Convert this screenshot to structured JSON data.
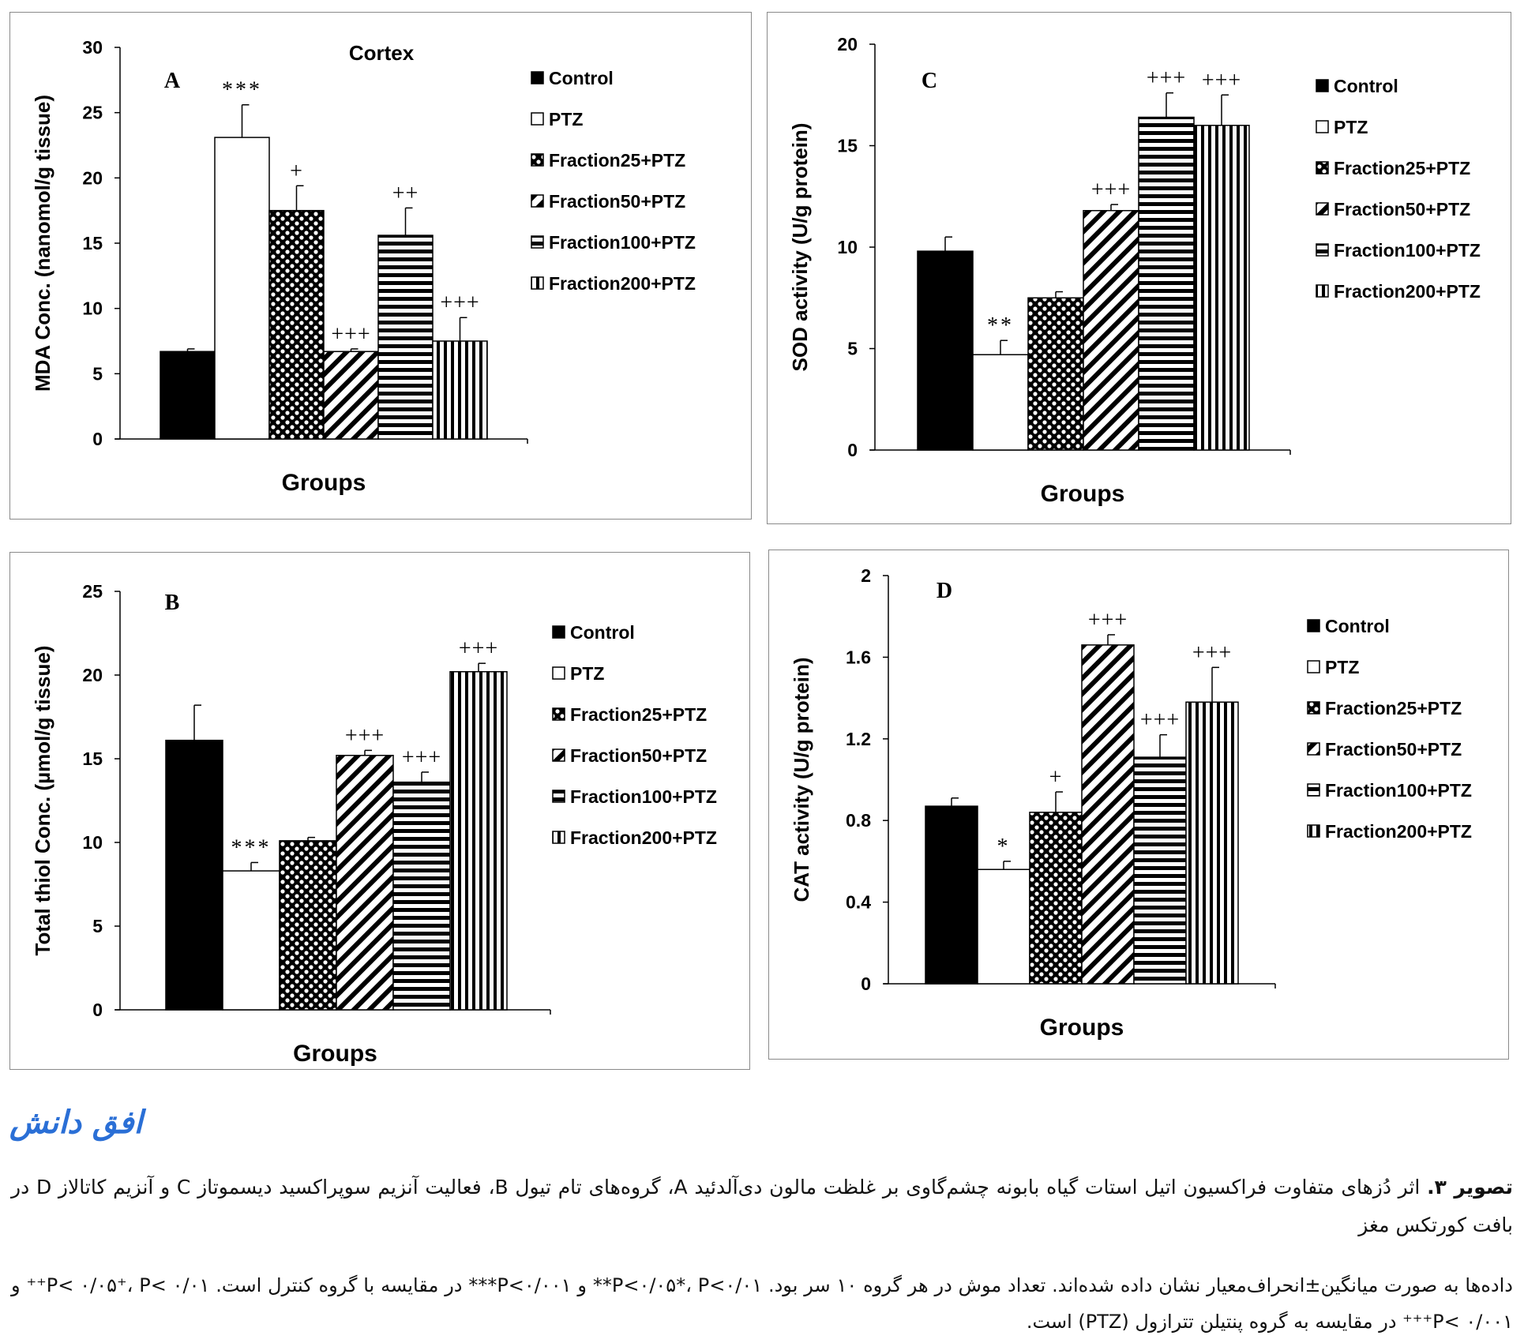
{
  "chart_data": [
    {
      "id": "pA",
      "type": "bar",
      "panel_letter": "A",
      "title": "Cortex",
      "xlabel": "Groups",
      "ylabel": "MDA Conc. (nanomol/g tissue)",
      "ylim": [
        0,
        30
      ],
      "yticks": [
        "0",
        "5",
        "10",
        "15",
        "20",
        "25",
        "30"
      ],
      "categories": [
        "Control",
        "PTZ",
        "Fraction25+PTZ",
        "Fraction50+PTZ",
        "Fraction100+PTZ",
        "Fraction200+PTZ"
      ],
      "values": [
        6.7,
        23.1,
        17.5,
        6.7,
        15.6,
        7.5
      ],
      "errors": [
        0.2,
        2.5,
        1.9,
        0.2,
        2.1,
        1.8
      ],
      "annotations": [
        "",
        "***",
        "+",
        "+++",
        "++",
        "+++"
      ],
      "legend": "right"
    },
    {
      "id": "pB",
      "type": "bar",
      "panel_letter": "B",
      "title": "",
      "xlabel": "Groups",
      "ylabel": "Total thiol Conc. (µmol/g tissue)",
      "ylim": [
        0,
        25
      ],
      "yticks": [
        "0",
        "5",
        "10",
        "15",
        "20",
        "25"
      ],
      "categories": [
        "Control",
        "PTZ",
        "Fraction25+PTZ",
        "Fraction50+PTZ",
        "Fraction100+PTZ",
        "Fraction200+PTZ"
      ],
      "values": [
        16.1,
        8.3,
        10.1,
        15.2,
        13.6,
        20.2
      ],
      "errors": [
        2.1,
        0.5,
        0.2,
        0.3,
        0.6,
        0.5
      ],
      "annotations": [
        "",
        "***",
        "",
        "+++",
        "+++",
        "+++"
      ],
      "legend": "right"
    },
    {
      "id": "pC",
      "type": "bar",
      "panel_letter": "C",
      "title": "",
      "xlabel": "Groups",
      "ylabel": "SOD activity (U/g protein)",
      "ylim": [
        0,
        20
      ],
      "yticks": [
        "0",
        "5",
        "10",
        "15",
        "20"
      ],
      "categories": [
        "Control",
        "PTZ",
        "Fraction25+PTZ",
        "Fraction50+PTZ",
        "Fraction100+PTZ",
        "Fraction200+PTZ"
      ],
      "values": [
        9.8,
        4.7,
        7.5,
        11.8,
        16.4,
        16.0
      ],
      "errors": [
        0.7,
        0.7,
        0.3,
        0.3,
        1.2,
        1.5
      ],
      "annotations": [
        "",
        "**",
        "",
        "+++",
        "+++",
        "+++"
      ],
      "legend": "right"
    },
    {
      "id": "pD",
      "type": "bar",
      "panel_letter": "D",
      "title": "",
      "xlabel": "Groups",
      "ylabel": "CAT activity (U/g protein)",
      "ylim": [
        0,
        2
      ],
      "yticks": [
        "0",
        "0.4",
        "0.8",
        "1.2",
        "1.6",
        "2"
      ],
      "categories": [
        "Control",
        "PTZ",
        "Fraction25+PTZ",
        "Fraction50+PTZ",
        "Fraction100+PTZ",
        "Fraction200+PTZ"
      ],
      "values": [
        0.87,
        0.56,
        0.84,
        1.66,
        1.11,
        1.38
      ],
      "errors": [
        0.04,
        0.04,
        0.1,
        0.05,
        0.11,
        0.17
      ],
      "annotations": [
        "",
        "*",
        "+",
        "+++",
        "+++",
        "+++"
      ],
      "legend": "right"
    }
  ],
  "logo_text": "افق دانش",
  "caption": {
    "label": "تصویر ۳.",
    "text": "اثر دُزهای متفاوت فراکسیون اتیل استات گیاه بابونه چشم‌گاوی بر غلظت مالون دی‌آلدئید A، گروه‌های تام تیول B، فعالیت آنزیم سوپراکسید دیسموتاز C و آنزیم کاتالاز D در بافت کورتکس مغز",
    "note": "داده‌ها به صورت میانگین±انحراف‌معیار نشان داده شده‌اند. تعداد موش در هر گروه ۱۰ سر بود. P<۰/۰۵*، P<۰/۰۱** و P<۰/۰۰۱*** در مقایسه با گروه کنترل است. P< ۰/۰۵⁺، P< ۰/۰۱⁺⁺ و P< ۰/۰۰۱⁺⁺⁺ در مقایسه به گروه پنتیلن تترازول (PTZ) است."
  },
  "colors": {
    "bar_stroke": "#000000",
    "fill": "#000000",
    "background": "#ffffff",
    "logo": "#2a6fd6"
  }
}
